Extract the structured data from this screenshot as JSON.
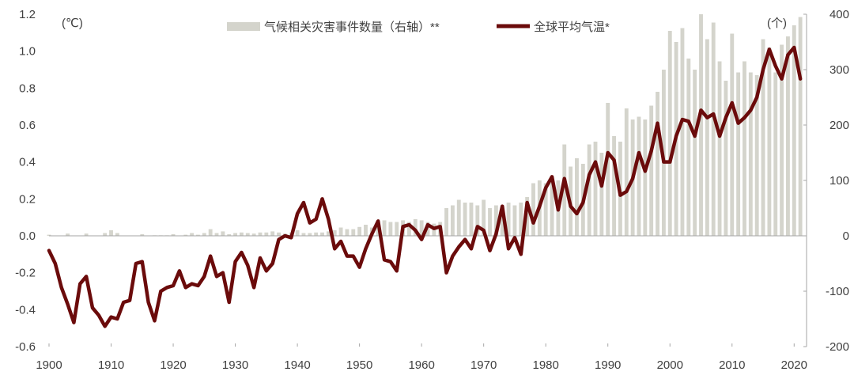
{
  "chart_data": {
    "type": "bar+line",
    "x": [
      1900,
      1901,
      1902,
      1903,
      1904,
      1905,
      1906,
      1907,
      1908,
      1909,
      1910,
      1911,
      1912,
      1913,
      1914,
      1915,
      1916,
      1917,
      1918,
      1919,
      1920,
      1921,
      1922,
      1923,
      1924,
      1925,
      1926,
      1927,
      1928,
      1929,
      1930,
      1931,
      1932,
      1933,
      1934,
      1935,
      1936,
      1937,
      1938,
      1939,
      1940,
      1941,
      1942,
      1943,
      1944,
      1945,
      1946,
      1947,
      1948,
      1949,
      1950,
      1951,
      1952,
      1953,
      1954,
      1955,
      1956,
      1957,
      1958,
      1959,
      1960,
      1961,
      1962,
      1963,
      1964,
      1965,
      1966,
      1967,
      1968,
      1969,
      1970,
      1971,
      1972,
      1973,
      1974,
      1975,
      1976,
      1977,
      1978,
      1979,
      1980,
      1981,
      1982,
      1983,
      1984,
      1985,
      1986,
      1987,
      1988,
      1989,
      1990,
      1991,
      1992,
      1993,
      1994,
      1995,
      1996,
      1997,
      1998,
      1999,
      2000,
      2001,
      2002,
      2003,
      2004,
      2005,
      2006,
      2007,
      2008,
      2009,
      2010,
      2011,
      2012,
      2013,
      2014,
      2015,
      2016,
      2017,
      2018,
      2019,
      2020,
      2021
    ],
    "series": [
      {
        "name": "气候相关灾害事件数量（右轴）**",
        "type": "bar",
        "axis": "right",
        "color": "#d4d4cc",
        "values": [
          2,
          0,
          0,
          4,
          0,
          0,
          4,
          0,
          0,
          5,
          10,
          5,
          0,
          0,
          0,
          3,
          0,
          1,
          1,
          1,
          3,
          0,
          2,
          5,
          2,
          5,
          12,
          5,
          8,
          3,
          5,
          6,
          5,
          4,
          6,
          6,
          8,
          6,
          4,
          6,
          10,
          5,
          5,
          6,
          6,
          8,
          10,
          15,
          12,
          12,
          16,
          20,
          15,
          22,
          28,
          25,
          25,
          28,
          25,
          30,
          28,
          25,
          22,
          25,
          50,
          55,
          65,
          60,
          60,
          55,
          65,
          50,
          55,
          55,
          60,
          55,
          60,
          70,
          95,
          100,
          95,
          105,
          100,
          165,
          125,
          140,
          130,
          165,
          170,
          150,
          240,
          180,
          170,
          230,
          210,
          215,
          210,
          235,
          260,
          300,
          370,
          350,
          375,
          320,
          300,
          400,
          355,
          385,
          315,
          280,
          365,
          295,
          315,
          295,
          290,
          355,
          340,
          295,
          345,
          360,
          380,
          395
        ]
      },
      {
        "name": "全球平均气温*",
        "type": "line",
        "axis": "left",
        "color": "#6b0b0b",
        "values": [
          -0.08,
          -0.15,
          -0.28,
          -0.37,
          -0.47,
          -0.26,
          -0.22,
          -0.39,
          -0.43,
          -0.49,
          -0.44,
          -0.45,
          -0.36,
          -0.35,
          -0.15,
          -0.14,
          -0.36,
          -0.46,
          -0.3,
          -0.28,
          -0.27,
          -0.19,
          -0.28,
          -0.26,
          -0.27,
          -0.22,
          -0.11,
          -0.22,
          -0.2,
          -0.36,
          -0.14,
          -0.09,
          -0.16,
          -0.28,
          -0.12,
          -0.19,
          -0.15,
          -0.02,
          0.0,
          -0.01,
          0.12,
          0.18,
          0.07,
          0.09,
          0.2,
          0.09,
          -0.07,
          -0.03,
          -0.11,
          -0.11,
          -0.17,
          -0.07,
          0.01,
          0.08,
          -0.13,
          -0.14,
          -0.19,
          0.05,
          0.06,
          0.03,
          -0.02,
          0.06,
          0.04,
          0.05,
          -0.2,
          -0.11,
          -0.06,
          -0.02,
          -0.07,
          0.05,
          0.03,
          -0.08,
          0.01,
          0.16,
          -0.07,
          -0.01,
          -0.1,
          0.18,
          0.07,
          0.16,
          0.26,
          0.32,
          0.14,
          0.31,
          0.16,
          0.12,
          0.18,
          0.33,
          0.4,
          0.27,
          0.45,
          0.41,
          0.22,
          0.24,
          0.31,
          0.45,
          0.35,
          0.46,
          0.61,
          0.4,
          0.4,
          0.54,
          0.63,
          0.62,
          0.54,
          0.68,
          0.64,
          0.66,
          0.54,
          0.64,
          0.72,
          0.61,
          0.64,
          0.68,
          0.75,
          0.9,
          1.01,
          0.92,
          0.85,
          0.98,
          1.02,
          0.85
        ]
      }
    ],
    "xlim": [
      1900,
      2022
    ],
    "x_ticks": [
      1900,
      1910,
      1920,
      1930,
      1940,
      1950,
      1960,
      1970,
      1980,
      1990,
      2000,
      2010,
      2020
    ],
    "ylim_left": [
      -0.6,
      1.2
    ],
    "y_ticks_left": [
      "1.2",
      "1.0",
      "0.8",
      "0.6",
      "0.4",
      "0.2",
      "0.0",
      "-0.2",
      "-0.4",
      "-0.6"
    ],
    "y_tick_values_left": [
      1.2,
      1.0,
      0.8,
      0.6,
      0.4,
      0.2,
      0.0,
      -0.2,
      -0.4,
      -0.6
    ],
    "ylim_right": [
      -200,
      400
    ],
    "y_ticks_right": [
      "400",
      "300",
      "200",
      "100",
      "0",
      "-100",
      "-200"
    ],
    "y_tick_values_right": [
      400,
      300,
      200,
      100,
      0,
      -100,
      -200
    ],
    "left_unit": "(℃)",
    "right_unit": "(个)",
    "legend_position": "top",
    "grid": false
  }
}
